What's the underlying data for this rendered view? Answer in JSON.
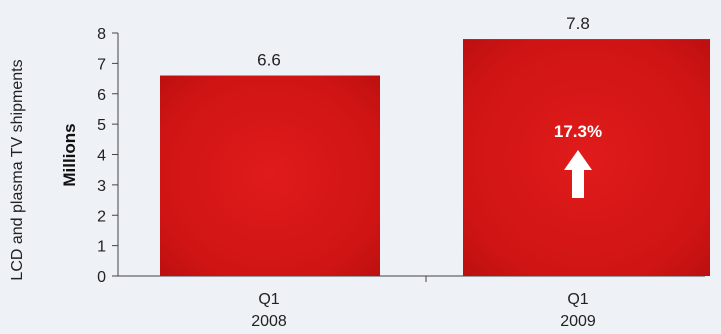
{
  "chart_data": {
    "type": "bar",
    "categories": [
      [
        "Q1",
        "2008"
      ],
      [
        "Q1",
        "2009"
      ]
    ],
    "values": [
      6.6,
      7.8
    ],
    "value_labels": [
      "6.6",
      "7.8"
    ],
    "side_label": "LCD and plasma TV shipments",
    "ylabel": "Millions",
    "ylim": [
      0,
      8
    ],
    "yticks": [
      "0",
      "1",
      "2",
      "3",
      "4",
      "5",
      "6",
      "7",
      "8"
    ],
    "grid": false,
    "bar_color": "#d41414",
    "annotation": {
      "text": "17.3%",
      "arrow": "up-arrow-icon",
      "color": "#ffffff"
    }
  }
}
